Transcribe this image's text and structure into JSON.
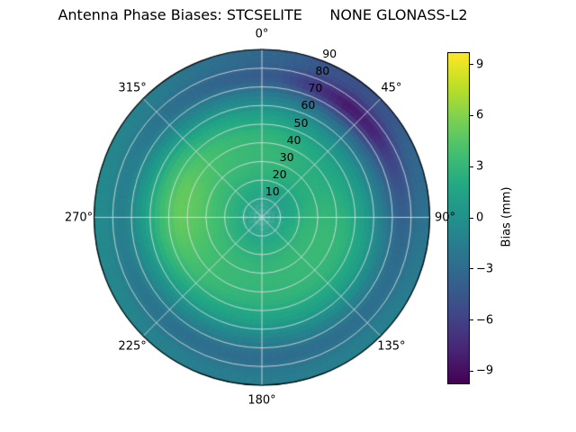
{
  "chart_data": {
    "type": "heatmap",
    "projection": "polar",
    "title": "Antenna Phase Biases: STCSELITE      NONE GLONASS-L2",
    "grid": true,
    "theta_zero_location": "N",
    "theta_direction": "clockwise",
    "azimuth_ticks": [
      {
        "label": "0°",
        "deg": 0
      },
      {
        "label": "45°",
        "deg": 45
      },
      {
        "label": "90°",
        "deg": 90
      },
      {
        "label": "135°",
        "deg": 135
      },
      {
        "label": "180°",
        "deg": 180
      },
      {
        "label": "225°",
        "deg": 225
      },
      {
        "label": "270°",
        "deg": 270
      },
      {
        "label": "315°",
        "deg": 315
      }
    ],
    "radial_ticks": [
      {
        "label": "10",
        "zenith": 10
      },
      {
        "label": "20",
        "zenith": 20
      },
      {
        "label": "30",
        "zenith": 30
      },
      {
        "label": "40",
        "zenith": 40
      },
      {
        "label": "50",
        "zenith": 50
      },
      {
        "label": "60",
        "zenith": 60
      },
      {
        "label": "70",
        "zenith": 70
      },
      {
        "label": "80",
        "zenith": 80
      },
      {
        "label": "90",
        "zenith": 90
      }
    ],
    "radial_label_angle_deg": 22.5,
    "colorbar": {
      "label": "Bias (mm)",
      "ticks": [
        9,
        6,
        3,
        0,
        -3,
        -6,
        -9
      ],
      "tick_labels": [
        "9",
        "6",
        "3",
        "0",
        "−3",
        "−6",
        "−9"
      ],
      "vmin": -9.7,
      "vmax": 9.7
    },
    "colormap": {
      "name": "viridis",
      "stops": [
        "#440154",
        "#482475",
        "#414487",
        "#355f8d",
        "#2a788e",
        "#21918c",
        "#22a884",
        "#44bf70",
        "#7ad151",
        "#bddf26",
        "#fde725"
      ]
    },
    "azimuth_bin_centers_deg": [
      7.5,
      22.5,
      37.5,
      52.5,
      67.5,
      82.5,
      97.5,
      112.5,
      127.5,
      142.5,
      157.5,
      172.5,
      187.5,
      202.5,
      217.5,
      232.5,
      247.5,
      262.5,
      277.5,
      292.5,
      307.5,
      322.5,
      337.5,
      352.5
    ],
    "zenith_ring_centers_deg": [
      5,
      15,
      25,
      35,
      45,
      55,
      65,
      75,
      85
    ],
    "bias_mm": [
      [
        0.8,
        0.6,
        0.5,
        0.5,
        0.6,
        0.8,
        1.0,
        1.0,
        1.0,
        1.0,
        1.0,
        1.0,
        1.0,
        1.0,
        1.0,
        1.1,
        1.2,
        1.2,
        1.2,
        1.2,
        1.1,
        1.0,
        0.9,
        0.8
      ],
      [
        2.0,
        1.8,
        1.5,
        1.5,
        1.6,
        1.8,
        2.0,
        2.2,
        2.2,
        2.2,
        2.2,
        2.2,
        2.2,
        2.2,
        2.3,
        2.4,
        2.5,
        2.6,
        2.6,
        2.5,
        2.4,
        2.2,
        2.1,
        2.0
      ],
      [
        3.0,
        2.8,
        2.5,
        2.4,
        2.5,
        2.8,
        3.0,
        3.2,
        3.2,
        3.2,
        3.1,
        3.0,
        3.0,
        3.1,
        3.2,
        3.4,
        3.6,
        3.8,
        3.8,
        3.6,
        3.4,
        3.2,
        3.1,
        3.0
      ],
      [
        3.2,
        3.0,
        2.6,
        2.5,
        2.6,
        3.0,
        3.2,
        3.4,
        3.4,
        3.3,
        3.2,
        3.2,
        3.2,
        3.3,
        3.5,
        3.8,
        4.2,
        4.6,
        4.8,
        4.6,
        4.2,
        3.8,
        3.5,
        3.3
      ],
      [
        2.8,
        2.4,
        2.0,
        1.8,
        2.0,
        2.4,
        2.8,
        3.0,
        3.0,
        3.0,
        2.9,
        2.8,
        2.8,
        3.0,
        3.3,
        3.8,
        4.4,
        5.0,
        5.2,
        5.0,
        4.4,
        3.8,
        3.3,
        3.0
      ],
      [
        1.2,
        0.8,
        0.2,
        0.0,
        0.3,
        0.8,
        1.2,
        1.5,
        1.6,
        1.6,
        1.5,
        1.4,
        1.4,
        1.5,
        1.8,
        2.2,
        2.8,
        3.2,
        3.4,
        3.2,
        2.8,
        2.2,
        1.8,
        1.4
      ],
      [
        -1.5,
        -2.2,
        -2.8,
        -3.0,
        -2.6,
        -2.0,
        -1.4,
        -1.0,
        -0.8,
        -0.8,
        -0.9,
        -1.0,
        -1.0,
        -0.9,
        -0.7,
        -0.4,
        0.0,
        0.4,
        0.6,
        0.4,
        0.0,
        -0.5,
        -0.9,
        -1.2
      ],
      [
        -4.5,
        -7.0,
        -8.8,
        -8.2,
        -6.0,
        -4.5,
        -3.5,
        -3.0,
        -2.8,
        -2.8,
        -2.9,
        -3.0,
        -3.0,
        -2.9,
        -2.7,
        -2.4,
        -2.0,
        -1.6,
        -1.5,
        -1.7,
        -2.2,
        -2.8,
        -3.4,
        -4.0
      ],
      [
        -3.5,
        -4.5,
        -5.0,
        -4.5,
        -3.5,
        -2.8,
        -2.2,
        -1.8,
        -1.5,
        -1.4,
        -1.5,
        -1.6,
        -1.6,
        -1.5,
        -1.3,
        -1.0,
        -0.8,
        -0.6,
        -0.6,
        -0.8,
        -1.2,
        -1.8,
        -2.4,
        -3.0
      ]
    ]
  }
}
